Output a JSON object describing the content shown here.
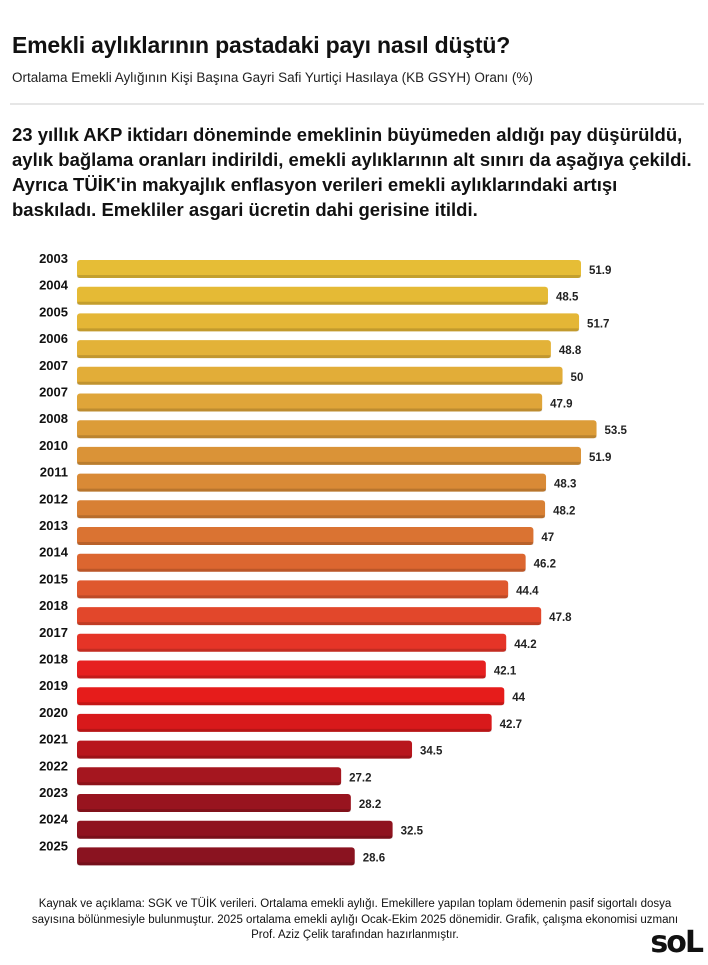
{
  "header": {
    "title": "Emekli aylıklarının pastadaki payı nasıl düştü?",
    "subtitle": "Ortalama Emekli Aylığının Kişi Başına Gayri Safi Yurtiçi Hasılaya (KB GSYH) Oranı (%)",
    "lead": "23 yıllık AKP iktidarı döneminde emeklinin büyümeden aldığı pay düşürüldü, aylık bağlama oranları indirildi, emekli aylıklarının alt sınırı da aşağıya çekildi. Ayrıca TÜİK'in makyajlık enflasyon verileri emekli aylıklarındaki artışı baskıladı. Emekliler asgari ücretin dahi gerisine itildi."
  },
  "chart_data": {
    "type": "bar",
    "orientation": "horizontal",
    "title": "Ortalama Emekli Aylığının Kişi Başına Gayri Safi Yurtiçi Hasılaya (KB GSYH) Oranı (%)",
    "categories": [
      "2003",
      "2004",
      "2005",
      "2006",
      "2007",
      "2007",
      "2008",
      "2010",
      "2011",
      "2012",
      "2013",
      "2014",
      "2015",
      "2018",
      "2017",
      "2018",
      "2019",
      "2020",
      "2021",
      "2022",
      "2023",
      "2024",
      "2025"
    ],
    "values": [
      51.9,
      48.5,
      51.7,
      48.8,
      50,
      47.9,
      53.5,
      51.9,
      48.3,
      48.2,
      47,
      46.2,
      44.4,
      47.8,
      44.2,
      42.1,
      44,
      42.7,
      34.5,
      27.2,
      28.2,
      32.5,
      28.6
    ],
    "value_labels": [
      "51.9",
      "48.5",
      "51.7",
      "48.8",
      "50",
      "47.9",
      "53.5",
      "51.9",
      "48.3",
      "48.2",
      "47",
      "46.2",
      "44.4",
      "47.8",
      "44.2",
      "42.1",
      "44",
      "42.7",
      "34.5",
      "27.2",
      "28.2",
      "32.5",
      "28.6"
    ],
    "colors": [
      "#e6bd36",
      "#e5ba35",
      "#e4b636",
      "#e3b238",
      "#e2ad38",
      "#dfa539",
      "#dc9c38",
      "#da9337",
      "#d98a36",
      "#d88034",
      "#da7332",
      "#dc6630",
      "#df582e",
      "#e2472b",
      "#e53427",
      "#e62020",
      "#e61c1b",
      "#d8191b",
      "#b8161d",
      "#a5161f",
      "#98141f",
      "#8f131f",
      "#8a1320"
    ],
    "xlim": [
      0,
      54
    ],
    "grid": false,
    "legend": "none"
  },
  "footer": {
    "notes": "Kaynak ve açıklama: SGK ve TÜİK verileri. Ortalama emekli aylığı. Emekillere yapılan toplam ödemenin pasif sigortalı dosya sayısına bölünmesiyle bulunmuştur. 2025 ortalama emekli aylığı Ocak-Ekim 2025 dönemidir. Grafik, çalışma ekonomisi uzmanı Prof. Aziz Çelik tarafından hazırlanmıştır.",
    "logo": "soL"
  }
}
